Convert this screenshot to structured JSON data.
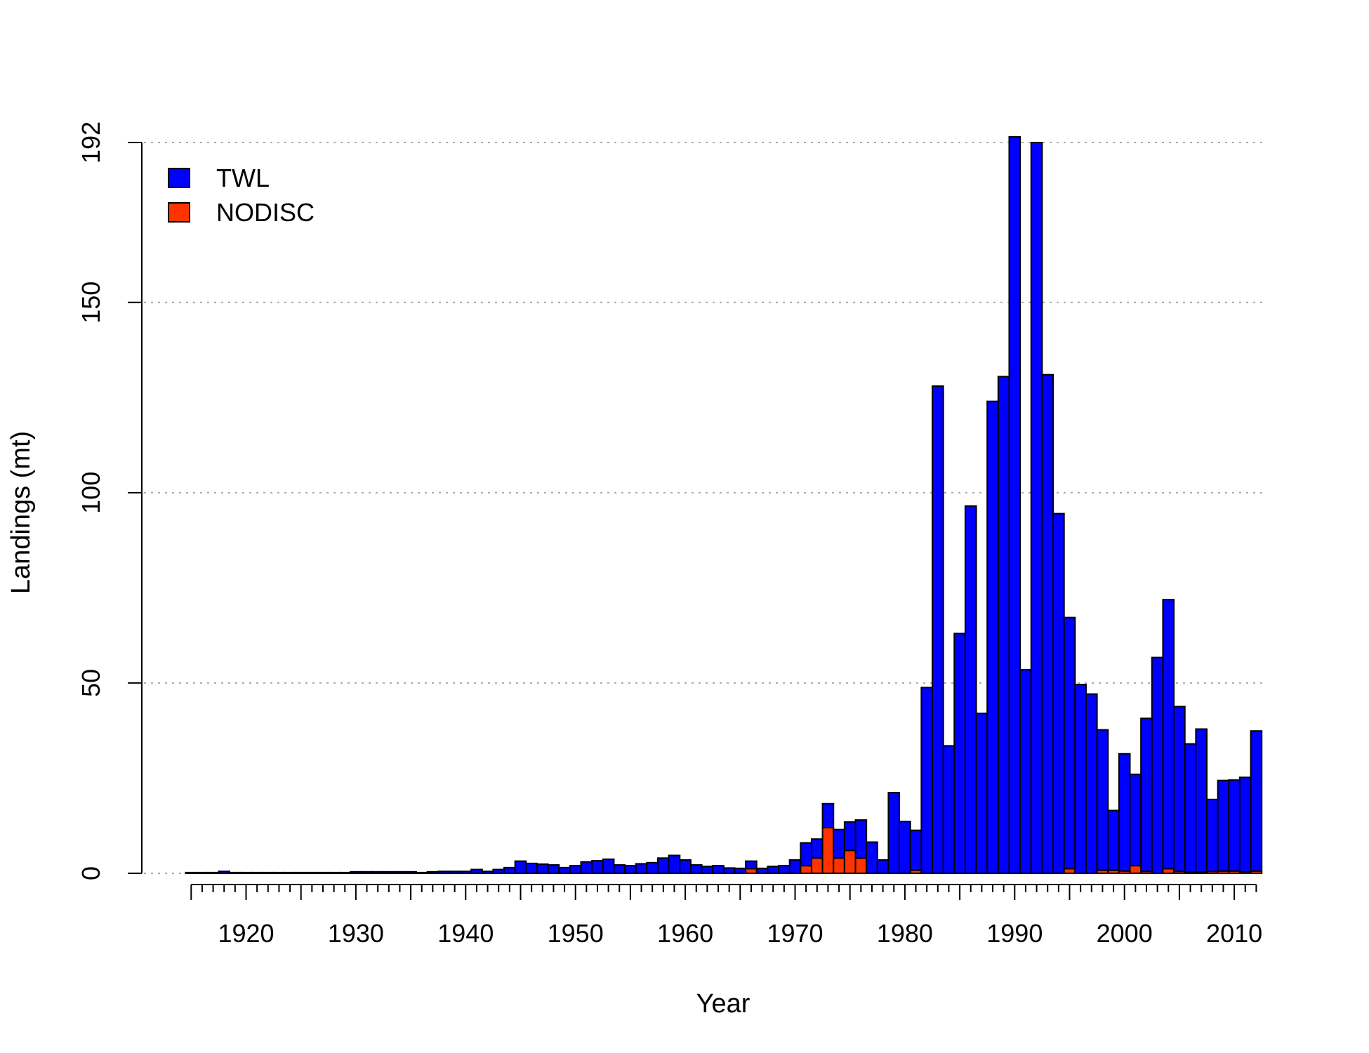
{
  "chart_data": {
    "type": "bar",
    "stacked": true,
    "xlabel": "Year",
    "ylabel": "Landings (mt)",
    "ylim": [
      0,
      192
    ],
    "yticks": [
      0,
      50,
      100,
      150,
      192
    ],
    "xticks_major": [
      1920,
      1930,
      1940,
      1950,
      1960,
      1970,
      1980,
      1990,
      2000,
      2010
    ],
    "xlim": [
      1915,
      2012
    ],
    "grid": "horizontal dotted at y ticks",
    "legend_position": "top-left",
    "x": [
      1915,
      1916,
      1917,
      1918,
      1919,
      1920,
      1921,
      1922,
      1923,
      1924,
      1925,
      1926,
      1927,
      1928,
      1929,
      1930,
      1931,
      1932,
      1933,
      1934,
      1935,
      1936,
      1937,
      1938,
      1939,
      1940,
      1941,
      1942,
      1943,
      1944,
      1945,
      1946,
      1947,
      1948,
      1949,
      1950,
      1951,
      1952,
      1953,
      1954,
      1955,
      1956,
      1957,
      1958,
      1959,
      1960,
      1961,
      1962,
      1963,
      1964,
      1965,
      1966,
      1967,
      1968,
      1969,
      1970,
      1971,
      1972,
      1973,
      1974,
      1975,
      1976,
      1977,
      1978,
      1979,
      1980,
      1981,
      1982,
      1983,
      1984,
      1985,
      1986,
      1987,
      1988,
      1989,
      1990,
      1991,
      1992,
      1993,
      1994,
      1995,
      1996,
      1997,
      1998,
      1999,
      2000,
      2001,
      2002,
      2003,
      2004,
      2005,
      2006,
      2007,
      2008,
      2009,
      2010,
      2011,
      2012
    ],
    "series": [
      {
        "name": "TWL",
        "color": "#0000ff",
        "values": [
          0.2,
          0.2,
          0.2,
          0.5,
          0.2,
          0.2,
          0.2,
          0.2,
          0.2,
          0.2,
          0.2,
          0.2,
          0.2,
          0.2,
          0.2,
          0.4,
          0.4,
          0.4,
          0.4,
          0.4,
          0.4,
          0.2,
          0.4,
          0.5,
          0.5,
          0.5,
          1.0,
          0.5,
          1.0,
          1.5,
          3.2,
          2.6,
          2.4,
          2.2,
          1.5,
          2.0,
          3.0,
          3.3,
          3.7,
          2.2,
          2.0,
          2.5,
          2.8,
          4.0,
          4.7,
          3.5,
          2.2,
          1.8,
          2.0,
          1.4,
          1.3,
          2.0,
          1.3,
          1.8,
          2.0,
          3.5,
          6.0,
          5.0,
          6.3,
          7.5,
          7.5,
          10.0,
          8.2,
          3.5,
          21.2,
          13.6,
          10.5,
          48.8,
          128.0,
          33.5,
          63.0,
          96.5,
          42.0,
          124.0,
          130.5,
          193.5,
          53.5,
          192.0,
          131.0,
          94.5,
          66.0,
          49.6,
          47.1,
          36.9,
          15.7,
          30.8,
          24.0,
          40.2,
          56.7,
          70.7,
          43.3,
          33.7,
          37.6,
          18.9,
          23.8,
          23.9,
          24.8,
          36.8
        ]
      },
      {
        "name": "NODISC",
        "color": "#ff3300",
        "values": [
          0,
          0,
          0,
          0,
          0,
          0,
          0,
          0,
          0,
          0,
          0,
          0,
          0,
          0,
          0,
          0,
          0,
          0,
          0,
          0,
          0,
          0,
          0,
          0,
          0,
          0,
          0,
          0,
          0,
          0,
          0,
          0,
          0,
          0,
          0,
          0,
          0,
          0,
          0,
          0,
          0,
          0,
          0,
          0,
          0,
          0,
          0,
          0,
          0,
          0,
          0,
          1.2,
          0,
          0,
          0,
          0,
          2.0,
          4.0,
          12.0,
          4.0,
          6.0,
          4.0,
          0,
          0,
          0,
          0,
          0.8,
          0,
          0,
          0,
          0,
          0,
          0,
          0,
          0,
          0,
          0,
          0,
          0,
          0,
          1.2,
          0,
          0,
          0.8,
          0.8,
          0.6,
          2.0,
          0.5,
          0,
          1.2,
          0.5,
          0.3,
          0.3,
          0.5,
          0.6,
          0.6,
          0.4,
          0.6
        ]
      }
    ]
  }
}
